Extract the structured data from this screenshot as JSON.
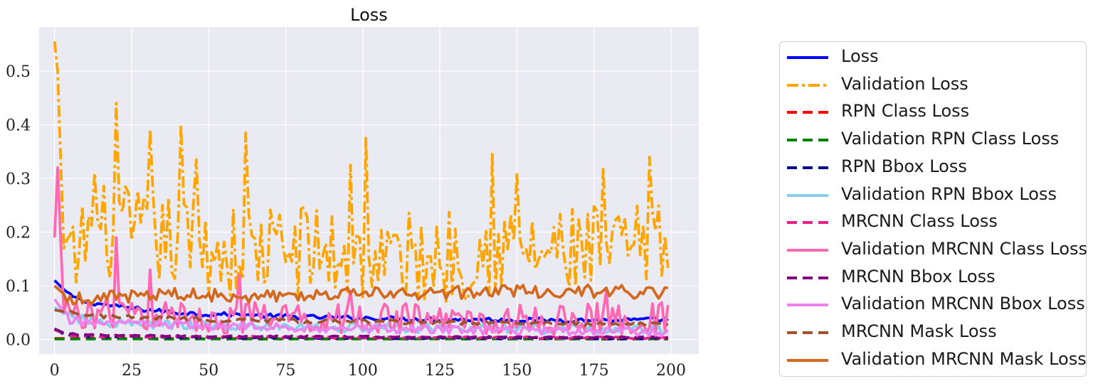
{
  "chart_data": {
    "type": "line",
    "title": "Loss",
    "xlabel": "",
    "ylabel": "",
    "xlim": [
      -5,
      209
    ],
    "ylim": [
      -0.027,
      0.582
    ],
    "xticks": [
      0,
      25,
      50,
      75,
      100,
      125,
      150,
      175,
      200
    ],
    "yticks": [
      0.0,
      0.1,
      0.2,
      0.3,
      0.4,
      0.5
    ],
    "ytick_labels": [
      "0.0",
      "0.1",
      "0.2",
      "0.3",
      "0.4",
      "0.5"
    ],
    "grid": true,
    "legend_position": "outside-right",
    "plot_background": "#eaeaf2",
    "series": [
      {
        "name": "Loss",
        "color": "#0000ff",
        "style": "solid",
        "anchors": [
          [
            0,
            0.11
          ],
          [
            5,
            0.082
          ],
          [
            10,
            0.07
          ],
          [
            20,
            0.062
          ],
          [
            30,
            0.055
          ],
          [
            40,
            0.05
          ],
          [
            50,
            0.047
          ],
          [
            60,
            0.046
          ],
          [
            70,
            0.044
          ],
          [
            80,
            0.042
          ],
          [
            100,
            0.04
          ],
          [
            120,
            0.038
          ],
          [
            140,
            0.037
          ],
          [
            160,
            0.036
          ],
          [
            180,
            0.036
          ],
          [
            199,
            0.037
          ]
        ],
        "noise": 0.004
      },
      {
        "name": "Validation Loss",
        "color": "#ffa500",
        "style": "dashdot",
        "anchors": [
          [
            0,
            0.555
          ],
          [
            1,
            0.5
          ],
          [
            3,
            0.17
          ],
          [
            6,
            0.13
          ],
          [
            10,
            0.2
          ],
          [
            20,
            0.2
          ],
          [
            40,
            0.18
          ],
          [
            60,
            0.16
          ],
          [
            80,
            0.17
          ],
          [
            100,
            0.15
          ],
          [
            120,
            0.15
          ],
          [
            140,
            0.17
          ],
          [
            160,
            0.16
          ],
          [
            180,
            0.16
          ],
          [
            199,
            0.17
          ]
        ],
        "peaks": [
          [
            13,
            0.31
          ],
          [
            20,
            0.44
          ],
          [
            31,
            0.39
          ],
          [
            41,
            0.4
          ],
          [
            46,
            0.335
          ],
          [
            62,
            0.385
          ],
          [
            96,
            0.325
          ],
          [
            101,
            0.375
          ],
          [
            142,
            0.345
          ],
          [
            150,
            0.31
          ],
          [
            178,
            0.32
          ],
          [
            193,
            0.34
          ]
        ],
        "noise": 0.09
      },
      {
        "name": "RPN Class Loss",
        "color": "#ff0000",
        "style": "dashed",
        "anchors": [
          [
            0,
            0.002
          ],
          [
            199,
            0.001
          ]
        ],
        "noise": 0.0005
      },
      {
        "name": "Validation RPN Class Loss",
        "color": "#008000",
        "style": "dashed",
        "anchors": [
          [
            0,
            0.001
          ],
          [
            199,
            0.001
          ]
        ],
        "noise": 0.0004
      },
      {
        "name": "RPN Bbox Loss",
        "color": "#00008b",
        "style": "dashed",
        "anchors": [
          [
            0,
            0.02
          ],
          [
            3,
            0.01
          ],
          [
            10,
            0.006
          ],
          [
            50,
            0.004
          ],
          [
            100,
            0.003
          ],
          [
            199,
            0.002
          ]
        ],
        "noise": 0.0015
      },
      {
        "name": "Validation RPN Bbox Loss",
        "color": "#87ceeb",
        "style": "solid",
        "anchors": [
          [
            0,
            0.06
          ],
          [
            5,
            0.04
          ],
          [
            20,
            0.03
          ],
          [
            50,
            0.025
          ],
          [
            100,
            0.022
          ],
          [
            150,
            0.02
          ],
          [
            199,
            0.018
          ]
        ],
        "noise": 0.009
      },
      {
        "name": "MRCNN Class Loss",
        "color": "#e91e8c",
        "style": "dashed",
        "anchors": [
          [
            0,
            0.018
          ],
          [
            5,
            0.008
          ],
          [
            20,
            0.006
          ],
          [
            100,
            0.004
          ],
          [
            199,
            0.003
          ]
        ],
        "noise": 0.002
      },
      {
        "name": "Validation MRCNN Class Loss",
        "color": "#ff69b4",
        "style": "solid",
        "anchors": [
          [
            0,
            0.19
          ],
          [
            1,
            0.32
          ],
          [
            3,
            0.05
          ],
          [
            10,
            0.05
          ],
          [
            50,
            0.04
          ],
          [
            100,
            0.04
          ],
          [
            150,
            0.035
          ],
          [
            199,
            0.04
          ]
        ],
        "peaks": [
          [
            20,
            0.19
          ],
          [
            31,
            0.13
          ],
          [
            60,
            0.12
          ],
          [
            96,
            0.09
          ],
          [
            179,
            0.09
          ]
        ],
        "noise": 0.03
      },
      {
        "name": "MRCNN Bbox Loss",
        "color": "#800080",
        "style": "dashed",
        "anchors": [
          [
            0,
            0.02
          ],
          [
            3,
            0.012
          ],
          [
            10,
            0.008
          ],
          [
            50,
            0.006
          ],
          [
            100,
            0.005
          ],
          [
            199,
            0.004
          ]
        ],
        "noise": 0.0015
      },
      {
        "name": "Validation MRCNN Bbox Loss",
        "color": "#ee82ee",
        "style": "solid",
        "anchors": [
          [
            0,
            0.075
          ],
          [
            5,
            0.035
          ],
          [
            20,
            0.03
          ],
          [
            50,
            0.025
          ],
          [
            100,
            0.02
          ],
          [
            150,
            0.017
          ],
          [
            199,
            0.014
          ]
        ],
        "noise": 0.008
      },
      {
        "name": "MRCNN Mask Loss",
        "color": "#a0522d",
        "style": "dashed",
        "anchors": [
          [
            0,
            0.055
          ],
          [
            10,
            0.045
          ],
          [
            30,
            0.04
          ],
          [
            60,
            0.036
          ],
          [
            100,
            0.033
          ],
          [
            150,
            0.03
          ],
          [
            199,
            0.028
          ]
        ],
        "noise": 0.004
      },
      {
        "name": "Validation MRCNN Mask Loss",
        "color": "#d2691e",
        "style": "solid",
        "anchors": [
          [
            0,
            0.1
          ],
          [
            5,
            0.075
          ],
          [
            20,
            0.08
          ],
          [
            40,
            0.085
          ],
          [
            60,
            0.08
          ],
          [
            80,
            0.085
          ],
          [
            100,
            0.085
          ],
          [
            120,
            0.085
          ],
          [
            140,
            0.09
          ],
          [
            160,
            0.09
          ],
          [
            180,
            0.09
          ],
          [
            199,
            0.085
          ]
        ],
        "noise": 0.012
      }
    ]
  }
}
